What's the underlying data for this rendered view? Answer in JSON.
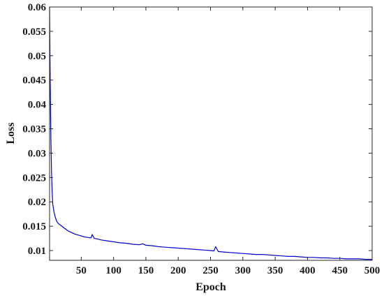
{
  "chart_data": {
    "type": "line",
    "title": "",
    "xlabel": "Epoch",
    "ylabel": "Loss",
    "xlim": [
      1,
      500
    ],
    "ylim": [
      0.008,
      0.06
    ],
    "x_ticks": [
      50,
      100,
      150,
      200,
      250,
      300,
      350,
      400,
      450,
      500
    ],
    "y_ticks": [
      0.01,
      0.015,
      0.02,
      0.025,
      0.03,
      0.035,
      0.04,
      0.045,
      0.05,
      0.055,
      0.06
    ],
    "x_tick_labels": [
      "50",
      "100",
      "150",
      "200",
      "250",
      "300",
      "350",
      "400",
      "450",
      "500"
    ],
    "y_tick_labels": [
      "0.01",
      "0.015",
      "0.02",
      "0.025",
      "0.03",
      "0.035",
      "0.04",
      "0.045",
      "0.05",
      "0.055",
      "0.06"
    ],
    "grid": false,
    "series": [
      {
        "color": "#0000cc",
        "x": [
          1,
          2,
          3,
          4,
          5,
          6,
          8,
          10,
          12,
          15,
          20,
          25,
          30,
          35,
          40,
          45,
          50,
          55,
          60,
          65,
          67,
          70,
          75,
          80,
          90,
          100,
          110,
          120,
          130,
          140,
          145,
          150,
          160,
          170,
          180,
          190,
          200,
          210,
          220,
          230,
          240,
          250,
          255,
          258,
          262,
          270,
          280,
          290,
          300,
          310,
          320,
          330,
          340,
          350,
          360,
          370,
          380,
          390,
          400,
          410,
          420,
          430,
          440,
          450,
          460,
          470,
          480,
          490,
          500
        ],
        "y": [
          0.06,
          0.045,
          0.033,
          0.026,
          0.022,
          0.0195,
          0.0178,
          0.0168,
          0.016,
          0.0155,
          0.015,
          0.0145,
          0.014,
          0.0137,
          0.0134,
          0.0132,
          0.013,
          0.0128,
          0.0127,
          0.0126,
          0.0133,
          0.0125,
          0.0124,
          0.0122,
          0.012,
          0.0118,
          0.0116,
          0.0115,
          0.0113,
          0.0112,
          0.0114,
          0.0111,
          0.011,
          0.0108,
          0.0107,
          0.0106,
          0.0105,
          0.0104,
          0.0103,
          0.0102,
          0.0101,
          0.01,
          0.0099,
          0.0108,
          0.0098,
          0.0097,
          0.0096,
          0.0095,
          0.0094,
          0.0093,
          0.0092,
          0.0092,
          0.0091,
          0.009,
          0.0089,
          0.0088,
          0.0088,
          0.0087,
          0.0086,
          0.0086,
          0.0085,
          0.0085,
          0.0084,
          0.0084,
          0.0083,
          0.0083,
          0.0083,
          0.0082,
          0.0082
        ]
      }
    ]
  }
}
